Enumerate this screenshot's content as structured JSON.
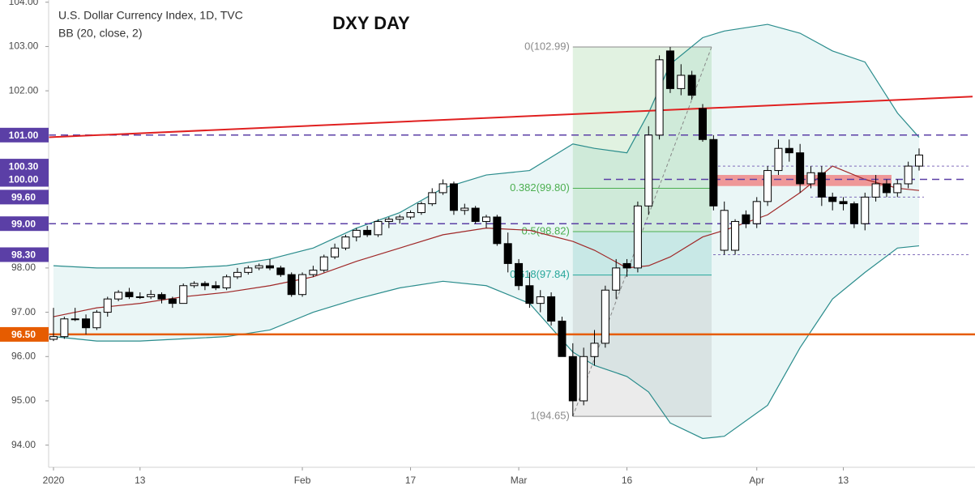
{
  "chart_data": {
    "type": "candlestick",
    "title": "DXY DAY",
    "subtitle": "U.S. Dollar Currency Index, 1D, TVC",
    "indicator": "BB (20, close, 2)",
    "categories": [
      "2020",
      null,
      null,
      null,
      null,
      null,
      null,
      null,
      "13",
      null,
      null,
      null,
      null,
      null,
      null,
      null,
      null,
      null,
      null,
      null,
      null,
      null,
      null,
      "Feb",
      null,
      null,
      null,
      null,
      null,
      null,
      null,
      null,
      null,
      "17",
      null,
      null,
      null,
      null,
      null,
      null,
      null,
      null,
      null,
      "Mar",
      null,
      null,
      null,
      null,
      null,
      null,
      null,
      null,
      null,
      "16",
      null,
      null,
      null,
      null,
      null,
      null,
      null,
      null,
      null,
      null,
      null,
      "Apr",
      null,
      null,
      null,
      null,
      null,
      null,
      null,
      "13",
      null,
      null,
      null,
      null,
      null,
      null,
      null
    ],
    "open": [
      96.39,
      96.45,
      96.85,
      96.85,
      96.65,
      97.0,
      97.3,
      97.45,
      97.35,
      97.35,
      97.4,
      97.3,
      97.2,
      97.6,
      97.65,
      97.6,
      97.55,
      97.8,
      97.9,
      98.0,
      98.05,
      98.0,
      97.85,
      97.4,
      97.85,
      97.95,
      98.25,
      98.45,
      98.7,
      98.85,
      98.75,
      99.05,
      99.1,
      99.15,
      99.25,
      99.45,
      99.7,
      99.9,
      99.3,
      99.35,
      99.05,
      99.15,
      98.55,
      98.1,
      97.6,
      97.2,
      97.35,
      96.8,
      96.0,
      95.0,
      96.0,
      96.3,
      97.5,
      98.1,
      98.0,
      99.4,
      101.0,
      102.9,
      102.05,
      102.35,
      101.6,
      100.9,
      98.4,
      98.4,
      99.2,
      99.0,
      99.5,
      100.2,
      100.7,
      100.6,
      99.9,
      100.15,
      99.6,
      99.5,
      99.45,
      99.0,
      99.6,
      99.9,
      99.7,
      99.9,
      100.3
    ],
    "high": [
      97.1,
      96.9,
      97.1,
      96.95,
      97.05,
      97.35,
      97.5,
      97.55,
      97.45,
      97.5,
      97.45,
      97.35,
      97.65,
      97.7,
      97.7,
      97.7,
      97.85,
      98.0,
      98.05,
      98.1,
      98.2,
      98.05,
      97.9,
      97.9,
      98.05,
      98.3,
      98.55,
      98.75,
      98.9,
      98.95,
      99.1,
      99.15,
      99.2,
      99.3,
      99.5,
      99.8,
      100.0,
      99.95,
      99.45,
      99.4,
      99.2,
      99.2,
      98.8,
      98.2,
      97.9,
      97.5,
      97.45,
      96.9,
      96.3,
      96.2,
      96.6,
      97.6,
      98.2,
      98.2,
      99.5,
      101.2,
      102.8,
      102.99,
      102.6,
      102.45,
      101.7,
      101.0,
      99.5,
      99.1,
      99.3,
      99.6,
      100.3,
      100.9,
      100.9,
      100.8,
      100.3,
      100.3,
      99.7,
      99.6,
      99.5,
      99.7,
      100.1,
      100.0,
      100.0,
      100.4,
      100.7
    ],
    "low": [
      96.35,
      96.4,
      96.8,
      96.5,
      96.6,
      96.9,
      97.25,
      97.3,
      97.3,
      97.3,
      97.2,
      97.1,
      97.2,
      97.55,
      97.5,
      97.5,
      97.5,
      97.75,
      97.85,
      97.95,
      97.95,
      97.8,
      97.35,
      97.35,
      97.8,
      97.9,
      98.2,
      98.4,
      98.6,
      98.7,
      98.7,
      98.9,
      99.0,
      99.1,
      99.2,
      99.4,
      99.65,
      99.2,
      99.2,
      99.0,
      98.9,
      98.5,
      97.9,
      97.5,
      97.1,
      97.0,
      96.7,
      96.0,
      94.65,
      94.9,
      95.8,
      96.2,
      97.3,
      97.8,
      97.9,
      99.2,
      100.9,
      101.95,
      101.9,
      101.8,
      100.85,
      99.3,
      98.3,
      98.3,
      98.9,
      98.9,
      99.4,
      100.1,
      100.4,
      99.7,
      99.8,
      99.4,
      99.3,
      99.3,
      98.9,
      98.85,
      99.5,
      99.6,
      99.6,
      99.8,
      100.2
    ],
    "close": [
      96.45,
      96.85,
      96.85,
      96.65,
      97.0,
      97.3,
      97.45,
      97.35,
      97.35,
      97.4,
      97.3,
      97.2,
      97.6,
      97.65,
      97.6,
      97.55,
      97.8,
      97.9,
      98.0,
      98.05,
      98.0,
      97.85,
      97.4,
      97.85,
      97.95,
      98.25,
      98.45,
      98.7,
      98.85,
      98.75,
      99.05,
      99.1,
      99.15,
      99.25,
      99.45,
      99.7,
      99.9,
      99.3,
      99.35,
      99.05,
      99.15,
      98.55,
      98.1,
      97.6,
      97.2,
      97.35,
      96.8,
      96.0,
      95.0,
      96.0,
      96.3,
      97.5,
      98.0,
      98.0,
      99.4,
      101.0,
      102.7,
      102.05,
      102.35,
      101.9,
      100.9,
      99.4,
      99.3,
      99.05,
      99.0,
      99.5,
      100.2,
      100.7,
      100.6,
      99.9,
      100.15,
      99.6,
      99.5,
      99.45,
      99.0,
      99.6,
      99.9,
      99.7,
      99.9,
      100.3,
      100.55
    ],
    "up_color": "#ffffff",
    "down_color": "#000000",
    "bands": {
      "fill": "#eaf6f6",
      "band_color": "#2a8c8c",
      "middle_color": "#a02828",
      "x": [
        0,
        4,
        8,
        12,
        16,
        20,
        24,
        28,
        32,
        36,
        40,
        44,
        48,
        50,
        53,
        55,
        57,
        60,
        62,
        66,
        69,
        72,
        75,
        78,
        80
      ],
      "upper": [
        98.05,
        98.0,
        98.0,
        98.0,
        98.05,
        98.2,
        98.45,
        98.9,
        99.25,
        99.8,
        100.1,
        100.2,
        100.8,
        100.7,
        100.6,
        101.5,
        102.6,
        103.2,
        103.35,
        103.5,
        103.3,
        102.9,
        102.65,
        101.5,
        100.95
      ],
      "middle": [
        96.9,
        97.1,
        97.2,
        97.35,
        97.45,
        97.6,
        97.8,
        98.15,
        98.45,
        98.75,
        98.9,
        98.85,
        98.6,
        98.4,
        98.0,
        98.05,
        98.25,
        98.7,
        98.85,
        99.2,
        99.7,
        100.3,
        100.0,
        99.8,
        99.75
      ],
      "lower": [
        96.45,
        96.35,
        96.35,
        96.4,
        96.45,
        96.6,
        97.0,
        97.3,
        97.55,
        97.7,
        97.6,
        97.2,
        96.1,
        95.8,
        95.55,
        95.2,
        94.5,
        94.15,
        94.2,
        94.9,
        96.2,
        97.3,
        97.9,
        98.45,
        98.5
      ]
    },
    "ylim": [
      93.5,
      104.05
    ],
    "yticks": [
      {
        "value": 94,
        "label": "94.00"
      },
      {
        "value": 95,
        "label": "95.00"
      },
      {
        "value": 96,
        "label": "96.00"
      },
      {
        "value": 97,
        "label": "97.00"
      },
      {
        "value": 98,
        "label": "98.00"
      },
      {
        "value": 99,
        "label": "99.00"
      },
      {
        "value": 100,
        "label": "100.00"
      },
      {
        "value": 101,
        "label": "101.00"
      },
      {
        "value": 102,
        "label": "102.00"
      },
      {
        "value": 103,
        "label": "103.00"
      },
      {
        "value": 104,
        "label": "104.00"
      }
    ],
    "levels": [
      {
        "value": 101,
        "label": "101.00",
        "color": "#5b3fa6",
        "style": "dashed"
      },
      {
        "value": 100.3,
        "label": "100.30",
        "color": "#5b3fa6",
        "style": "dotted"
      },
      {
        "value": 100,
        "label": "100.00",
        "color": "#5b3fa6",
        "style": "dashed"
      },
      {
        "value": 99.6,
        "label": "99.60",
        "color": "#5b3fa6",
        "style": "dotted"
      },
      {
        "value": 99,
        "label": "99.00",
        "color": "#5b3fa6",
        "style": "dashed"
      },
      {
        "value": 98.3,
        "label": "98.30",
        "color": "#5b3fa6",
        "style": "dotted"
      },
      {
        "value": 96.5,
        "label": "96.50",
        "color": "#e65c00",
        "style": "solid"
      }
    ],
    "trendline": {
      "color": "#e02020",
      "values": [
        100.95,
        101.87
      ]
    },
    "zone": {
      "color": "#f07878",
      "values": [
        99.85,
        100.1
      ]
    },
    "fib": [
      {
        "value": 102.99,
        "label": "0(102.99)",
        "color": "#8a8a8a"
      },
      {
        "value": 99.8,
        "label": "0.382(99.80)",
        "color": "#4caf50"
      },
      {
        "value": 98.82,
        "label": "0.5(98.82)",
        "color": "#4caf50"
      },
      {
        "value": 97.84,
        "label": "0.618(97.84)",
        "color": "#26a69a"
      },
      {
        "value": 94.65,
        "label": "1(94.65)",
        "color": "#8a8a8a"
      }
    ]
  }
}
